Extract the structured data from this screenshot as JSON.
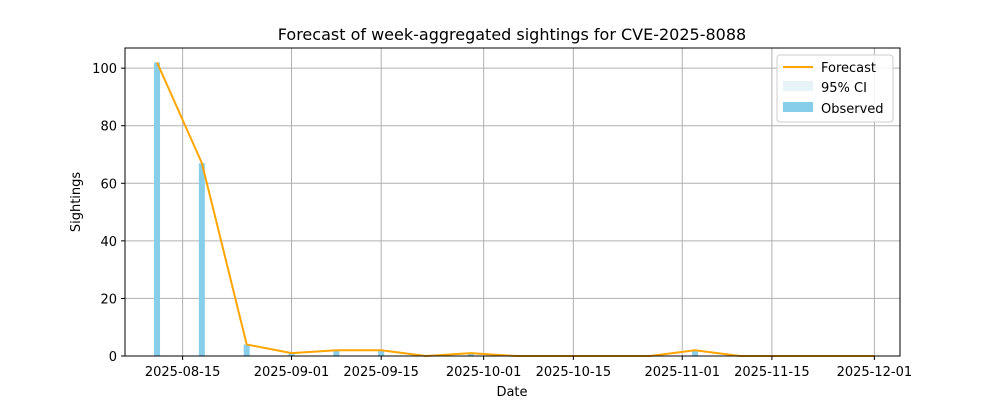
{
  "chart_data": {
    "type": "bar",
    "title": "Forecast of week-aggregated sightings for CVE-2025-8088",
    "xlabel": "Date",
    "ylabel": "Sightings",
    "xlim": [
      "2025-08-06",
      "2025-12-05"
    ],
    "ylim": [
      0,
      107
    ],
    "grid": true,
    "legend_position": "top-right",
    "x_ticks": [
      "2025-08-15",
      "2025-09-01",
      "2025-09-15",
      "2025-10-01",
      "2025-10-15",
      "2025-11-01",
      "2025-11-15",
      "2025-12-01"
    ],
    "y_ticks": [
      0,
      20,
      40,
      60,
      80,
      100
    ],
    "series": [
      {
        "name": "Observed",
        "kind": "bar",
        "color": "#87ceeb",
        "points": [
          {
            "x": "2025-08-11",
            "y": 102
          },
          {
            "x": "2025-08-18",
            "y": 67
          },
          {
            "x": "2025-08-25",
            "y": 4
          },
          {
            "x": "2025-09-01",
            "y": 1
          },
          {
            "x": "2025-09-08",
            "y": 2
          },
          {
            "x": "2025-09-15",
            "y": 2
          },
          {
            "x": "2025-09-22",
            "y": 0
          },
          {
            "x": "2025-09-29",
            "y": 1
          },
          {
            "x": "2025-10-06",
            "y": 0
          },
          {
            "x": "2025-10-13",
            "y": 0
          },
          {
            "x": "2025-10-20",
            "y": 0
          },
          {
            "x": "2025-10-27",
            "y": 0
          },
          {
            "x": "2025-11-03",
            "y": 2
          },
          {
            "x": "2025-11-10",
            "y": 0
          },
          {
            "x": "2025-11-17",
            "y": 0
          },
          {
            "x": "2025-11-24",
            "y": 0
          },
          {
            "x": "2025-12-01",
            "y": 0
          }
        ]
      },
      {
        "name": "Forecast",
        "kind": "line",
        "color": "#ffa500",
        "points": [
          {
            "x": "2025-08-11",
            "y": 102
          },
          {
            "x": "2025-08-18",
            "y": 67
          },
          {
            "x": "2025-08-25",
            "y": 4
          },
          {
            "x": "2025-09-01",
            "y": 1
          },
          {
            "x": "2025-09-08",
            "y": 2
          },
          {
            "x": "2025-09-15",
            "y": 2
          },
          {
            "x": "2025-09-22",
            "y": 0
          },
          {
            "x": "2025-09-29",
            "y": 1
          },
          {
            "x": "2025-10-06",
            "y": 0
          },
          {
            "x": "2025-10-13",
            "y": 0
          },
          {
            "x": "2025-10-20",
            "y": 0
          },
          {
            "x": "2025-10-27",
            "y": 0
          },
          {
            "x": "2025-11-03",
            "y": 2
          },
          {
            "x": "2025-11-10",
            "y": 0
          },
          {
            "x": "2025-11-17",
            "y": 0
          },
          {
            "x": "2025-11-24",
            "y": 0
          },
          {
            "x": "2025-12-01",
            "y": 0
          }
        ]
      },
      {
        "name": "95% CI",
        "kind": "band",
        "color": "#add8e6",
        "points": []
      }
    ],
    "legend": [
      "Forecast",
      "95% CI",
      "Observed"
    ]
  }
}
